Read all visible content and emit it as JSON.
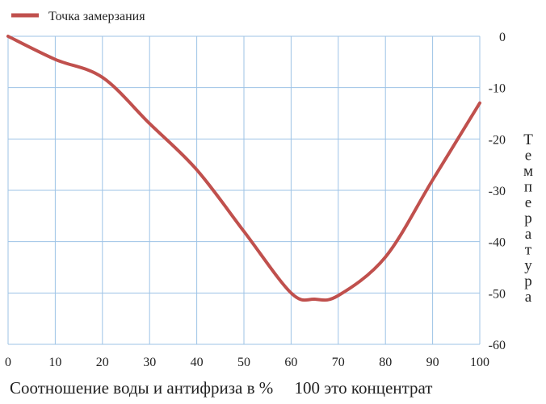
{
  "chart_data": {
    "type": "line",
    "xlabel": "Соотношение воды и антифриза в %     100 это концентрат",
    "ylabel": "Температура",
    "xlim": [
      0,
      100
    ],
    "ylim": [
      -60,
      0
    ],
    "x_ticks": [
      "0",
      "10",
      "20",
      "30",
      "40",
      "50",
      "60",
      "70",
      "80",
      "90",
      "100"
    ],
    "y_ticks": [
      "0",
      "-10",
      "-20",
      "-30",
      "-40",
      "-50",
      "-60"
    ],
    "y_axis_side": "right",
    "grid": true,
    "legend_position": "top-left",
    "series": [
      {
        "name": "Точка замерзания",
        "color": "#c0504d",
        "x": [
          0,
          10,
          20,
          30,
          40,
          50,
          60,
          65,
          70,
          80,
          90,
          100
        ],
        "y": [
          0,
          -4.5,
          -8,
          -17,
          -26,
          -38,
          -50,
          -51.2,
          -50.5,
          -43,
          -28,
          -13
        ]
      }
    ]
  },
  "colors": {
    "grid": "#9dc3e6",
    "line": "#c0504d"
  }
}
